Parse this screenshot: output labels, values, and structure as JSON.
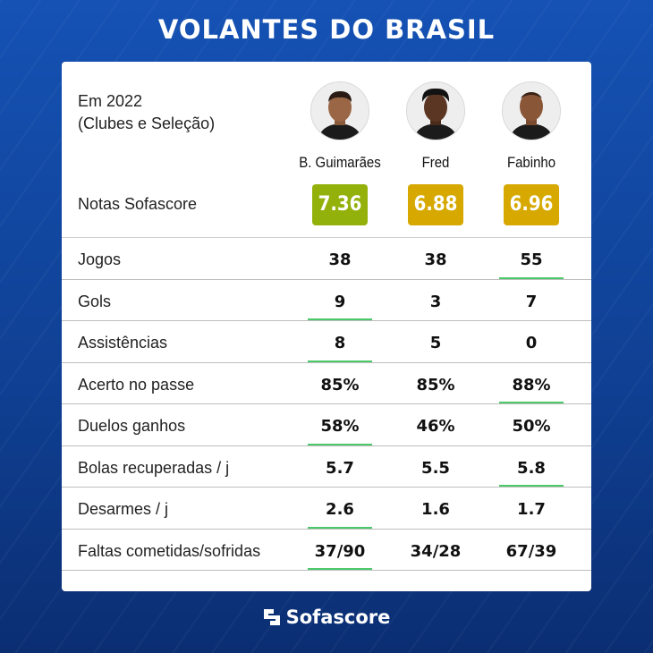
{
  "header": {
    "title": "VOLANTES DO BRASIL"
  },
  "intro": {
    "line1": "Em 2022",
    "line2": "(Clubes e Seleção)"
  },
  "players": [
    {
      "name": "B. Guimarães",
      "rating": "7.36",
      "rating_color": "#93b10b",
      "avatar_icon": "player-photo"
    },
    {
      "name": "Fred",
      "rating": "6.88",
      "rating_color": "#d6a800",
      "avatar_icon": "player-photo"
    },
    {
      "name": "Fabinho",
      "rating": "6.96",
      "rating_color": "#d6a800",
      "avatar_icon": "player-photo"
    }
  ],
  "ratings_label": "Notas Sofascore",
  "stats": [
    {
      "label": "Jogos",
      "values": [
        "38",
        "38",
        "55"
      ],
      "best": [
        2
      ]
    },
    {
      "label": "Gols",
      "values": [
        "9",
        "3",
        "7"
      ],
      "best": [
        0
      ]
    },
    {
      "label": "Assistências",
      "values": [
        "8",
        "5",
        "0"
      ],
      "best": [
        0
      ]
    },
    {
      "label": "Acerto no passe",
      "values": [
        "85%",
        "85%",
        "88%"
      ],
      "best": [
        2
      ]
    },
    {
      "label": "Duelos ganhos",
      "values": [
        "58%",
        "46%",
        "50%"
      ],
      "best": [
        0
      ]
    },
    {
      "label": "Bolas recuperadas / j",
      "values": [
        "5.7",
        "5.5",
        "5.8"
      ],
      "best": [
        2
      ]
    },
    {
      "label": "Desarmes / j",
      "values": [
        "2.6",
        "1.6",
        "1.7"
      ],
      "best": [
        0
      ]
    },
    {
      "label": "Faltas cometidas/sofridas",
      "values": [
        "37/90",
        "34/28",
        "67/39"
      ],
      "best": [
        0
      ]
    }
  ],
  "colors": {
    "best_underline": "#4cc96a",
    "background": "#1552b4"
  },
  "footer": {
    "brand": "Sofascore",
    "logo_icon": "sofascore-logo-icon"
  }
}
